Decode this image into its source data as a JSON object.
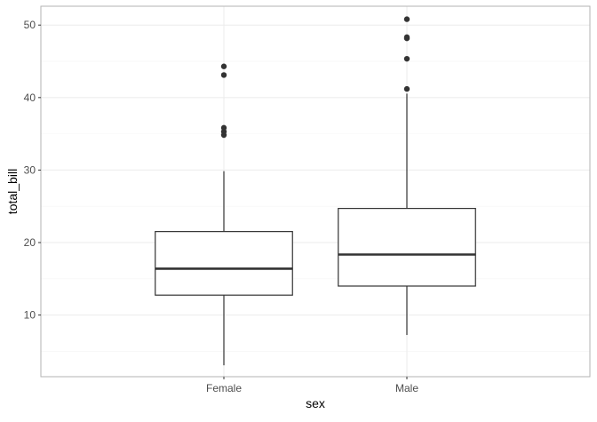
{
  "chart_data": {
    "type": "boxplot",
    "title": "",
    "xlabel": "sex",
    "ylabel": "total_bill",
    "ylim": [
      1.5,
      52.6
    ],
    "yticks": [
      10,
      20,
      30,
      40,
      50
    ],
    "y_minor_ticks": [
      5,
      15,
      25,
      35,
      45
    ],
    "grid": true,
    "categories": [
      "Female",
      "Male"
    ],
    "boxes": [
      {
        "category": "Female",
        "whisker_low": 3.07,
        "q1": 12.75,
        "median": 16.4,
        "q3": 21.52,
        "whisker_high": 29.85,
        "outliers": [
          34.83,
          35.3,
          35.83,
          43.11,
          44.3
        ]
      },
      {
        "category": "Male",
        "whisker_low": 7.25,
        "q1": 14.0,
        "median": 18.35,
        "q3": 24.71,
        "whisker_high": 40.55,
        "outliers": [
          41.19,
          45.35,
          48.17,
          48.33,
          50.81
        ]
      }
    ],
    "colors": {
      "box_fill": "#ffffff",
      "box_stroke": "#333333",
      "panel_border": "#b3b3b3",
      "grid_major": "#ebebeb",
      "grid_minor": "#f5f5f5",
      "tick_text": "#4d4d4d",
      "axis_title": "#000000"
    }
  }
}
